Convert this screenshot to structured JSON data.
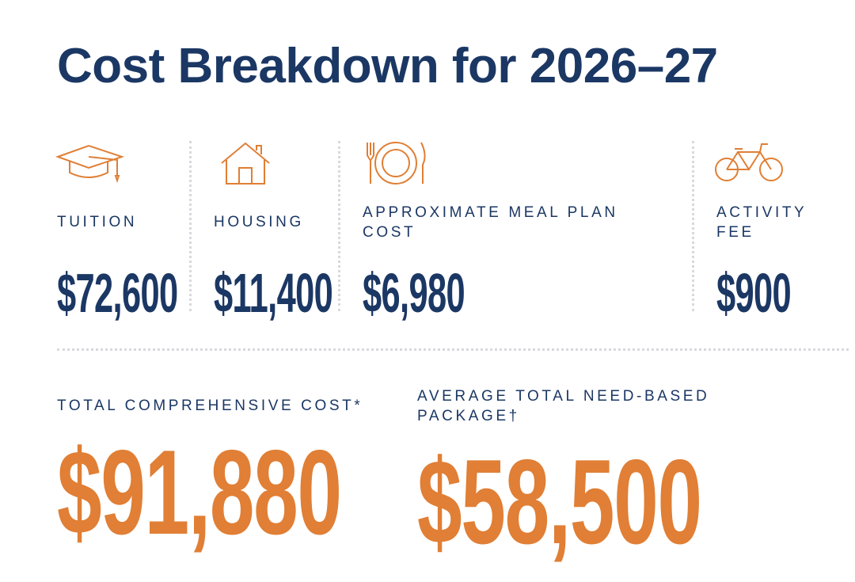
{
  "title": "Cost Breakdown for 2026–27",
  "items": [
    {
      "label": "TUITION",
      "amount": "$72,600"
    },
    {
      "label": "HOUSING",
      "amount": "$11,400"
    },
    {
      "label": "APPROXIMATE MEAL PLAN COST",
      "amount": "$6,980"
    },
    {
      "label": "ACTIVITY FEE",
      "amount": "$900"
    }
  ],
  "totals": [
    {
      "label": "TOTAL COMPREHENSIVE COST*",
      "amount": "$91,880"
    },
    {
      "label": "AVERAGE TOTAL NEED-BASED PACKAGE†",
      "amount": "$58,500"
    }
  ]
}
